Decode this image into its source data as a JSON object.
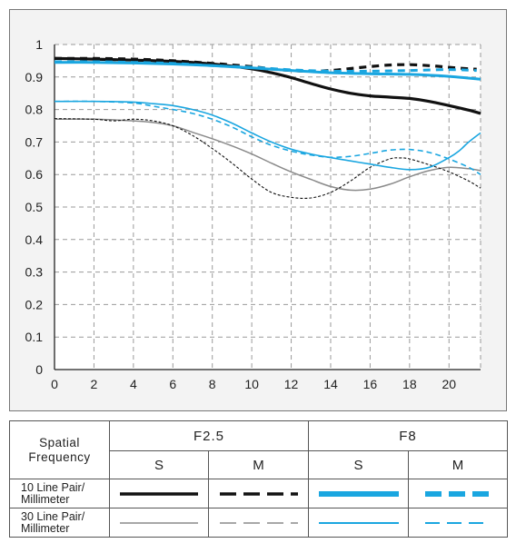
{
  "chart_data": {
    "type": "line",
    "x_ticks": [
      "0",
      "2",
      "4",
      "6",
      "8",
      "10",
      "12",
      "14",
      "16",
      "18",
      "20"
    ],
    "y_ticks": [
      "0",
      "0.1",
      "0.2",
      "0.3",
      "0.4",
      "0.5",
      "0.6",
      "0.7",
      "0.8",
      "0.9",
      "1"
    ],
    "xlim": [
      0,
      21.6
    ],
    "ylim": [
      0,
      1
    ],
    "grid": true,
    "series": [
      {
        "key": "f25_10_s",
        "color": "#111111",
        "width": 3.2,
        "dash": "",
        "x": [
          0,
          2,
          4,
          6,
          8,
          10,
          11,
          12,
          13,
          14,
          15,
          16,
          17,
          18,
          19,
          20,
          21,
          21.6
        ],
        "y": [
          0.957,
          0.955,
          0.952,
          0.948,
          0.94,
          0.925,
          0.913,
          0.898,
          0.88,
          0.863,
          0.85,
          0.842,
          0.838,
          0.834,
          0.825,
          0.812,
          0.798,
          0.788
        ]
      },
      {
        "key": "f25_10_m",
        "color": "#111111",
        "width": 3.2,
        "dash": "8 6",
        "x": [
          0,
          2,
          4,
          6,
          8,
          9,
          10,
          11,
          12,
          13,
          14,
          15,
          16,
          17,
          18,
          19,
          20,
          21,
          21.4
        ],
        "y": [
          0.957,
          0.957,
          0.955,
          0.95,
          0.942,
          0.937,
          0.932,
          0.925,
          0.92,
          0.918,
          0.92,
          0.926,
          0.932,
          0.937,
          0.938,
          0.935,
          0.93,
          0.925,
          0.924
        ]
      },
      {
        "key": "f25_30_s",
        "color": "#8a8a8a",
        "width": 1.5,
        "dash": "",
        "x": [
          0,
          2,
          4,
          5,
          6,
          7,
          8,
          9,
          10,
          11,
          12,
          13,
          14,
          15,
          16,
          17,
          18,
          19,
          20,
          21,
          21.6
        ],
        "y": [
          0.77,
          0.77,
          0.765,
          0.76,
          0.75,
          0.73,
          0.71,
          0.688,
          0.663,
          0.635,
          0.608,
          0.585,
          0.563,
          0.552,
          0.555,
          0.57,
          0.593,
          0.612,
          0.622,
          0.618,
          0.612
        ]
      },
      {
        "key": "f25_30_m",
        "color": "#111111",
        "width": 1.1,
        "dash": "3 2",
        "x": [
          0,
          2,
          3,
          4,
          5,
          6,
          7,
          8,
          9,
          10,
          11,
          12,
          13,
          14,
          15,
          16,
          17,
          17.5,
          18,
          19,
          20,
          21,
          21.6
        ],
        "y": [
          0.772,
          0.77,
          0.765,
          0.77,
          0.765,
          0.75,
          0.72,
          0.68,
          0.635,
          0.586,
          0.545,
          0.53,
          0.528,
          0.545,
          0.58,
          0.622,
          0.648,
          0.651,
          0.648,
          0.63,
          0.608,
          0.58,
          0.558
        ]
      },
      {
        "key": "f8_10_s",
        "color": "#1aa6e0",
        "width": 3,
        "dash": "",
        "x": [
          0,
          2,
          4,
          6,
          8,
          10,
          12,
          14,
          16,
          18,
          20,
          21.6
        ],
        "y": [
          0.945,
          0.945,
          0.943,
          0.94,
          0.935,
          0.928,
          0.92,
          0.913,
          0.91,
          0.908,
          0.902,
          0.893
        ]
      },
      {
        "key": "f8_10_m",
        "color": "#1aa6e0",
        "width": 3,
        "dash": "8 6",
        "x": [
          0,
          2,
          4,
          6,
          8,
          10,
          12,
          14,
          16,
          18,
          20,
          21.4
        ],
        "y": [
          0.947,
          0.947,
          0.945,
          0.942,
          0.935,
          0.93,
          0.922,
          0.918,
          0.918,
          0.92,
          0.923,
          0.92
        ]
      },
      {
        "key": "f8_30_s",
        "color": "#1aa6e0",
        "width": 1.6,
        "dash": "",
        "x": [
          0,
          2,
          4,
          5,
          6,
          7,
          8,
          9,
          10,
          11,
          12,
          13,
          14,
          15,
          16,
          17,
          18,
          19,
          20,
          20.5,
          21,
          21.6
        ],
        "y": [
          0.825,
          0.825,
          0.823,
          0.818,
          0.812,
          0.8,
          0.783,
          0.758,
          0.728,
          0.7,
          0.678,
          0.663,
          0.652,
          0.642,
          0.632,
          0.622,
          0.615,
          0.622,
          0.652,
          0.672,
          0.7,
          0.728
        ]
      },
      {
        "key": "f8_30_m",
        "color": "#1aa6e0",
        "width": 1.6,
        "dash": "6 4",
        "x": [
          0,
          2,
          4,
          5,
          6,
          7,
          8,
          9,
          10,
          11,
          12,
          13,
          14,
          15,
          16,
          17,
          18,
          19,
          20,
          21,
          21.6
        ],
        "y": [
          0.825,
          0.825,
          0.82,
          0.81,
          0.8,
          0.788,
          0.77,
          0.746,
          0.716,
          0.69,
          0.672,
          0.66,
          0.653,
          0.656,
          0.665,
          0.675,
          0.677,
          0.668,
          0.648,
          0.622,
          0.6
        ]
      }
    ]
  },
  "legend": {
    "spatial_line1": "Spatial",
    "spatial_line2": "Frequency",
    "aperture_1": "F2.5",
    "aperture_2": "F8",
    "s_label": "S",
    "m_label": "M",
    "row1_line1": "10 Line Pair/",
    "row1_line2": "Millimeter",
    "row2_line1": "30 Line Pair/",
    "row2_line2": "Millimeter",
    "colors": {
      "dark": "#111111",
      "gray": "#8a8a8a",
      "blue": "#1aa6e0"
    }
  }
}
